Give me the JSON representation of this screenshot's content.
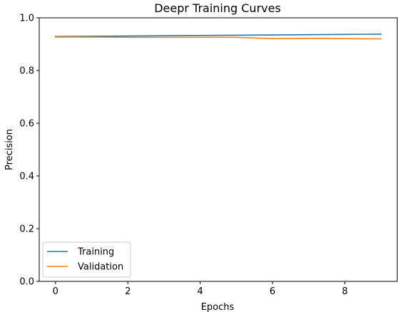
{
  "chart_data": {
    "type": "line",
    "title": "Deepr Training Curves",
    "xlabel": "Epochs",
    "ylabel": "Precision",
    "xlim": [
      -0.45,
      9.45
    ],
    "ylim": [
      0.0,
      1.0
    ],
    "xticks": [
      0,
      2,
      4,
      6,
      8
    ],
    "yticks": [
      0.0,
      0.2,
      0.4,
      0.6,
      0.8,
      1.0
    ],
    "xtick_labels": [
      "0",
      "2",
      "4",
      "6",
      "8"
    ],
    "ytick_labels": [
      "0.0",
      "0.2",
      "0.4",
      "0.6",
      "0.8",
      "1.0"
    ],
    "x": [
      0,
      1,
      2,
      3,
      4,
      5,
      6,
      7,
      8,
      9
    ],
    "series": [
      {
        "name": "Training",
        "color": "#1f77b4",
        "values": [
          0.929,
          0.93,
          0.931,
          0.932,
          0.933,
          0.934,
          0.935,
          0.936,
          0.937,
          0.938
        ]
      },
      {
        "name": "Validation",
        "color": "#ff7f0e",
        "values": [
          0.927,
          0.927,
          0.926,
          0.926,
          0.926,
          0.926,
          0.921,
          0.922,
          0.921,
          0.92
        ]
      }
    ],
    "legend_position": "lower-left",
    "grid": false
  }
}
